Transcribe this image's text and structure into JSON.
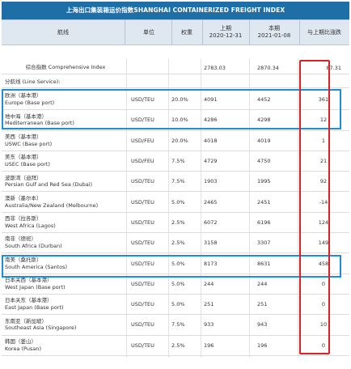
{
  "title": "上海出口集装箱运价指数SHANGHAI CONTAINERIZED FREIGHT INDEX",
  "headers": {
    "route": "航线",
    "unit": "单位",
    "weight": "权重",
    "prev_label": "上期",
    "prev_date": "2020-12-31",
    "curr_label": "本期",
    "curr_date": "2021-01-08",
    "change": "与上期比涨跌"
  },
  "composite": {
    "name": "综合指数 Comprehensive Index",
    "prev": "2783.03",
    "curr": "2870.34",
    "change": "87.31"
  },
  "section_label": "分航线 (Line Service):",
  "rows": [
    {
      "zh": "欧洲（基本港）",
      "en": "Europe (Base port)",
      "unit": "USD/TEU",
      "weight": "20.0%",
      "prev": "4091",
      "curr": "4452",
      "change": "361"
    },
    {
      "zh": "地中海（基本港）",
      "en": "Mediterranean (Base port)",
      "unit": "USD/TEU",
      "weight": "10.0%",
      "prev": "4286",
      "curr": "4298",
      "change": "12"
    },
    {
      "zh": "美西（基本港）",
      "en": "USWC (Base port)",
      "unit": "USD/FEU",
      "weight": "20.0%",
      "prev": "4018",
      "curr": "4019",
      "change": "1"
    },
    {
      "zh": "美东（基本港）",
      "en": "USEC (Base port)",
      "unit": "USD/FEU",
      "weight": "7.5%",
      "prev": "4729",
      "curr": "4750",
      "change": "21"
    },
    {
      "zh": "波斯湾（迪拜）",
      "en": "Persian Gulf and Red Sea (Dubai)",
      "unit": "USD/TEU",
      "weight": "7.5%",
      "prev": "1903",
      "curr": "1995",
      "change": "92"
    },
    {
      "zh": "澳新（墨尔本）",
      "en": "Australia/New Zealand (Melbourne)",
      "unit": "USD/TEU",
      "weight": "5.0%",
      "prev": "2465",
      "curr": "2451",
      "change": "-14"
    },
    {
      "zh": "西非（拉各斯）",
      "en": "West Africa (Lagos)",
      "unit": "USD/TEU",
      "weight": "2.5%",
      "prev": "6072",
      "curr": "6196",
      "change": "124"
    },
    {
      "zh": "南非（德班）",
      "en": "South Africa (Durban)",
      "unit": "USD/TEU",
      "weight": "2.5%",
      "prev": "3158",
      "curr": "3307",
      "change": "149"
    },
    {
      "zh": "南美（桑托斯）",
      "en": "South America (Santos)",
      "unit": "USD/TEU",
      "weight": "5.0%",
      "prev": "8173",
      "curr": "8631",
      "change": "458"
    },
    {
      "zh": "日本关西（基本港）",
      "en": "West Japan (Base port)",
      "unit": "USD/TEU",
      "weight": "5.0%",
      "prev": "244",
      "curr": "244",
      "change": "0"
    },
    {
      "zh": "日本关东（基本港）",
      "en": "East Japan (Base port)",
      "unit": "USD/TEU",
      "weight": "5.0%",
      "prev": "251",
      "curr": "251",
      "change": "0"
    },
    {
      "zh": "东南亚（新加坡）",
      "en": "Southeast Asia (Singapore)",
      "unit": "USD/TEU",
      "weight": "7.5%",
      "prev": "933",
      "curr": "943",
      "change": "10"
    },
    {
      "zh": "韩国（釜山）",
      "en": "Korea (Pusan)",
      "unit": "USD/TEU",
      "weight": "2.5%",
      "prev": "196",
      "curr": "196",
      "change": "0"
    }
  ],
  "colors": {
    "title_bg": "#1e6ea8",
    "header_bg": "#dfe8f1",
    "highlight_blue": "#1e8fd5",
    "highlight_red": "#e02020"
  }
}
